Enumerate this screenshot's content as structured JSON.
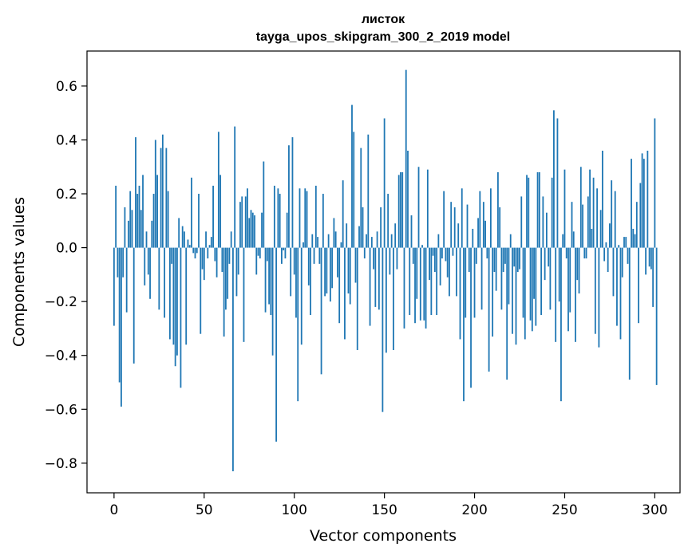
{
  "chart_data": {
    "type": "bar",
    "title": "листок",
    "subtitle": "tayga_upos_skipgram_300_2_2019 model",
    "xlabel": "Vector components",
    "ylabel": "Components values",
    "xlim": [
      -15,
      314
    ],
    "ylim": [
      -0.91,
      0.73
    ],
    "xticks": [
      0,
      50,
      100,
      150,
      200,
      250,
      300
    ],
    "yticks": [
      -0.8,
      -0.6,
      -0.4,
      -0.2,
      0.0,
      0.2,
      0.4,
      0.6
    ],
    "ytick_labels": [
      "−0.8",
      "−0.6",
      "−0.4",
      "−0.2",
      "0.0",
      "0.2",
      "0.4",
      "0.6"
    ],
    "bar_color": "#1f77b4",
    "values": [
      -0.29,
      0.23,
      -0.11,
      -0.5,
      -0.59,
      -0.11,
      0.15,
      -0.24,
      0.1,
      0.21,
      0.14,
      -0.43,
      0.41,
      0.2,
      0.23,
      0.14,
      0.27,
      -0.14,
      0.06,
      -0.1,
      -0.19,
      0.1,
      0.2,
      0.4,
      0.27,
      -0.23,
      0.37,
      0.42,
      -0.26,
      0.37,
      0.21,
      -0.34,
      -0.06,
      -0.36,
      -0.44,
      -0.4,
      0.11,
      -0.52,
      0.08,
      0.06,
      -0.36,
      0.03,
      0.01,
      0.26,
      -0.02,
      -0.04,
      -0.02,
      0.2,
      -0.32,
      -0.08,
      -0.12,
      0.06,
      -0.04,
      0.01,
      0.04,
      0.23,
      -0.05,
      -0.11,
      0.43,
      0.27,
      -0.09,
      -0.33,
      -0.23,
      -0.19,
      -0.06,
      0.06,
      -0.83,
      0.45,
      -0.18,
      -0.1,
      0.17,
      0.19,
      -0.35,
      0.19,
      0.22,
      0.11,
      0.14,
      0.13,
      0.12,
      -0.1,
      -0.03,
      -0.04,
      0.13,
      0.32,
      -0.24,
      -0.05,
      -0.21,
      -0.25,
      -0.4,
      0.23,
      -0.72,
      0.22,
      0.2,
      -0.06,
      -0.01,
      -0.04,
      0.13,
      0.38,
      -0.18,
      0.41,
      -0.1,
      -0.26,
      -0.57,
      0.22,
      -0.36,
      0.02,
      0.22,
      0.21,
      -0.14,
      -0.25,
      0.05,
      -0.06,
      0.23,
      0.04,
      -0.06,
      -0.47,
      0.2,
      -0.18,
      -0.17,
      0.05,
      -0.2,
      -0.15,
      0.11,
      0.06,
      -0.11,
      -0.28,
      0.02,
      0.25,
      -0.34,
      0.09,
      -0.17,
      -0.21,
      0.53,
      0.43,
      -0.13,
      -0.38,
      0.08,
      0.37,
      0.15,
      -0.04,
      0.05,
      0.42,
      -0.29,
      0.04,
      -0.08,
      -0.22,
      0.06,
      -0.23,
      0.15,
      -0.61,
      0.48,
      -0.39,
      0.2,
      -0.1,
      0.05,
      -0.38,
      0.09,
      -0.08,
      0.27,
      0.28,
      0.28,
      -0.3,
      0.66,
      0.36,
      -0.25,
      0.12,
      -0.06,
      -0.28,
      -0.19,
      0.3,
      -0.27,
      0.01,
      -0.27,
      -0.3,
      0.29,
      -0.12,
      -0.25,
      -0.03,
      -0.09,
      -0.25,
      0.05,
      -0.14,
      -0.04,
      0.21,
      -0.05,
      -0.11,
      -0.18,
      0.17,
      -0.03,
      0.15,
      -0.18,
      0.09,
      -0.34,
      0.22,
      -0.57,
      -0.26,
      0.16,
      -0.09,
      -0.52,
      0.07,
      -0.26,
      -0.06,
      0.11,
      0.21,
      -0.23,
      0.17,
      0.1,
      -0.04,
      -0.46,
      0.22,
      -0.33,
      -0.09,
      -0.16,
      0.28,
      0.15,
      -0.23,
      -0.09,
      -0.06,
      -0.49,
      -0.21,
      0.05,
      -0.32,
      -0.07,
      -0.36,
      -0.09,
      -0.08,
      0.19,
      -0.26,
      -0.34,
      0.27,
      0.26,
      -0.27,
      -0.31,
      -0.19,
      -0.29,
      0.28,
      0.28,
      -0.25,
      0.19,
      -0.12,
      0.13,
      -0.07,
      -0.23,
      0.26,
      0.51,
      -0.35,
      0.48,
      -0.2,
      -0.57,
      0.05,
      0.29,
      -0.04,
      -0.31,
      -0.24,
      0.17,
      0.06,
      -0.35,
      -0.12,
      -0.17,
      0.3,
      0.16,
      -0.04,
      -0.04,
      0.19,
      0.29,
      0.07,
      0.26,
      -0.32,
      0.22,
      -0.37,
      0.14,
      0.36,
      -0.05,
      0.02,
      -0.09,
      0.09,
      0.25,
      -0.18,
      0.21,
      -0.29,
      0.01,
      -0.34,
      -0.11,
      0.04,
      0.04,
      -0.06,
      -0.49,
      0.33,
      0.07,
      0.05,
      0.17,
      -0.28,
      0.24,
      0.35,
      0.33,
      -0.1,
      0.36,
      -0.07,
      -0.08,
      -0.22,
      0.48,
      -0.51
    ]
  }
}
